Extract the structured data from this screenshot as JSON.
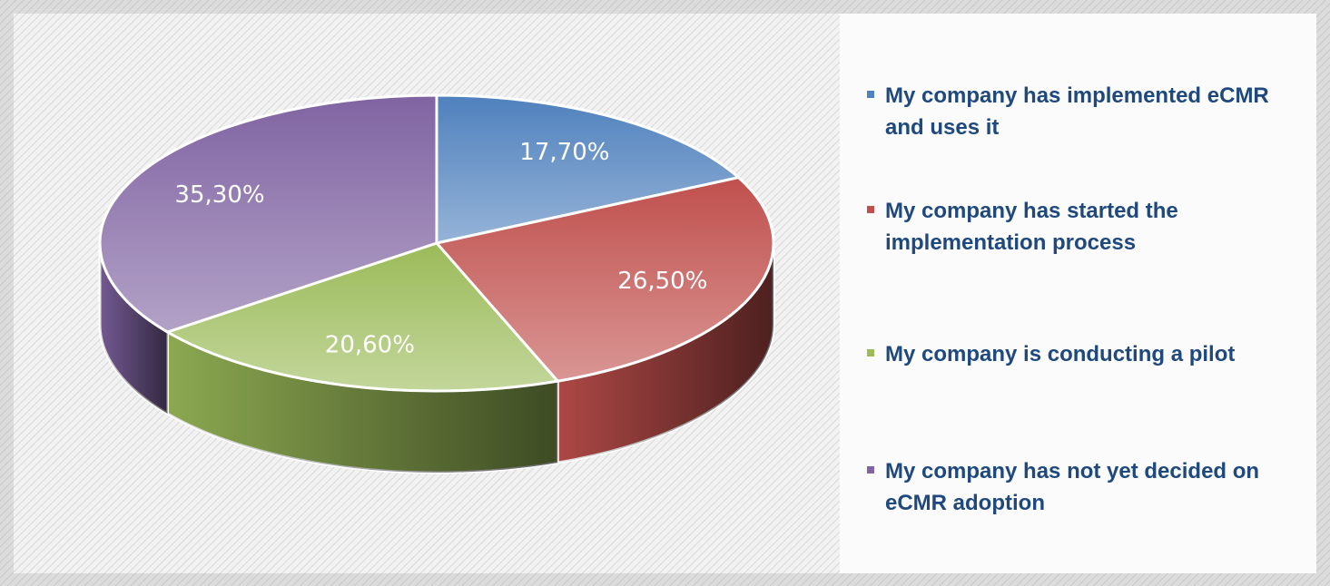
{
  "chart_data": {
    "type": "pie3d",
    "categories": [
      "My company has implemented eCMR and uses it",
      "My company has started the implementation process",
      "My company is conducting a pilot",
      "My company has not yet decided on eCMR adoption"
    ],
    "values": [
      17.7,
      26.5,
      20.6,
      35.3
    ],
    "value_labels": [
      "17,70%",
      "26,50%",
      "20,60%",
      "35,30%"
    ],
    "colors": [
      "#4f81bd",
      "#c0504d",
      "#9bbb59",
      "#8064a2"
    ],
    "legend": "right"
  }
}
